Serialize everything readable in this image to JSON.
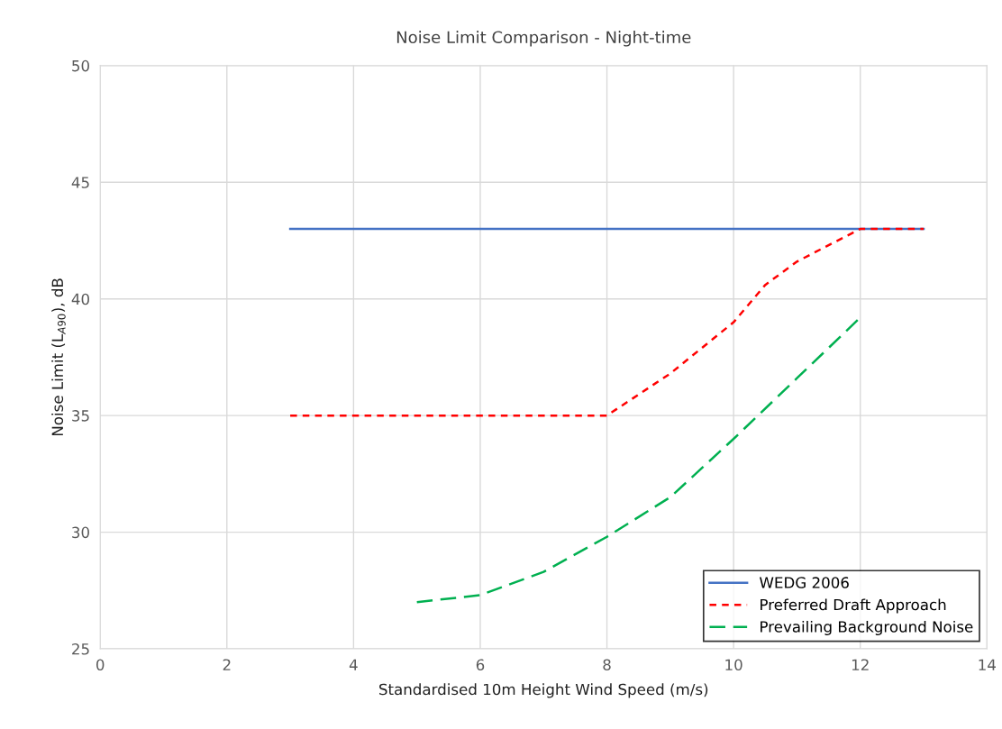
{
  "chart_data": {
    "type": "line",
    "title": "Noise Limit Comparison - Night-time",
    "xlabel": "Standardised 10m Height Wind Speed (m/s)",
    "ylabel": "Noise Limit (L$_{A90}$), dB",
    "xlim": [
      0,
      14
    ],
    "xticks": [
      0,
      2,
      4,
      6,
      8,
      10,
      12,
      14
    ],
    "ylim": [
      25,
      50
    ],
    "yticks": [
      25,
      30,
      35,
      40,
      45,
      50
    ],
    "grid": true,
    "legend": "bottom right",
    "marker": "none",
    "series": [
      {
        "name": "WEDG 2006",
        "color": "#4472c4",
        "line_style": "solid",
        "x": [
          3,
          13
        ],
        "values": [
          43,
          43
        ]
      },
      {
        "name": "Preferred Draft Approach",
        "color": "#ff0000",
        "line_style": "dashed",
        "x": [
          3,
          8,
          9,
          10,
          10.5,
          11,
          12,
          13
        ],
        "values": [
          35,
          35,
          36.8,
          39,
          40.6,
          41.6,
          43,
          43
        ]
      },
      {
        "name": "Prevailing Background Noise",
        "color": "#00b050",
        "line_style": "longdash",
        "x": [
          5,
          6,
          7,
          8,
          9,
          10,
          11,
          12
        ],
        "values": [
          27,
          27.3,
          28.3,
          29.8,
          31.5,
          34,
          36.6,
          39.2
        ]
      }
    ]
  }
}
